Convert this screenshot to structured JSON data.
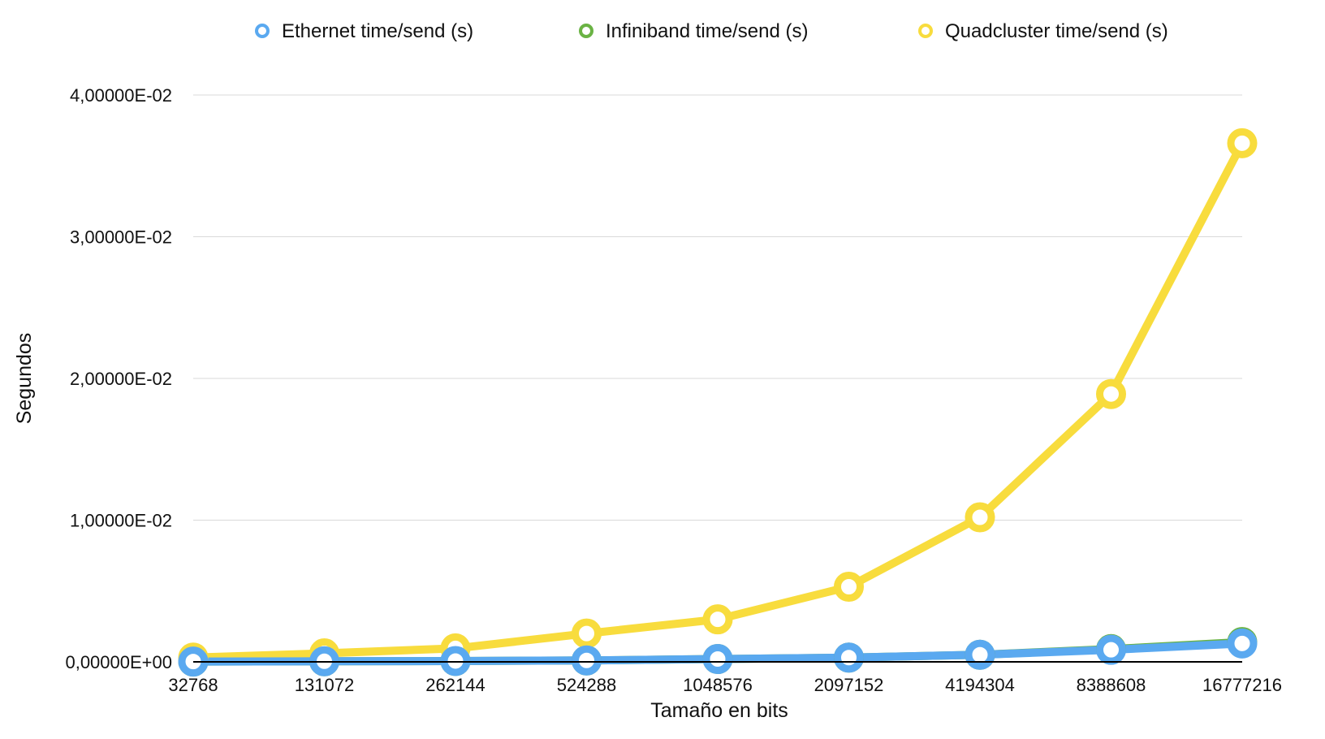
{
  "chart_data": {
    "type": "line",
    "title": "",
    "xlabel": "Tamaño en bits",
    "ylabel": "Segundos",
    "categories": [
      "32768",
      "131072",
      "262144",
      "524288",
      "1048576",
      "2097152",
      "4194304",
      "8388608",
      "16777216"
    ],
    "series": [
      {
        "name": "Ethernet time/send (s)",
        "color": "#5aa9f0",
        "values": [
          2e-05,
          4e-05,
          6e-05,
          0.0001,
          0.0002,
          0.0003,
          0.0005,
          0.00085,
          0.0013
        ]
      },
      {
        "name": "Infiniband time/send (s)",
        "color": "#6ab344",
        "values": [
          2e-05,
          4e-05,
          6e-05,
          0.0001,
          0.0002,
          0.0003,
          0.0005,
          0.0009,
          0.0014
        ]
      },
      {
        "name": "Quadcluster time/send (s)",
        "color": "#f8dc3d",
        "values": [
          0.0003,
          0.0006,
          0.00095,
          0.002,
          0.003,
          0.0053,
          0.0102,
          0.0189,
          0.0366
        ]
      }
    ],
    "ylim": [
      0,
      0.04
    ],
    "yticks": [
      0,
      0.01,
      0.02,
      0.03,
      0.04
    ],
    "ytick_labels": [
      "0,00000E+00",
      "1,00000E-02",
      "2,00000E-02",
      "3,00000E-02",
      "4,00000E-02"
    ],
    "grid": true,
    "legend": "top"
  }
}
